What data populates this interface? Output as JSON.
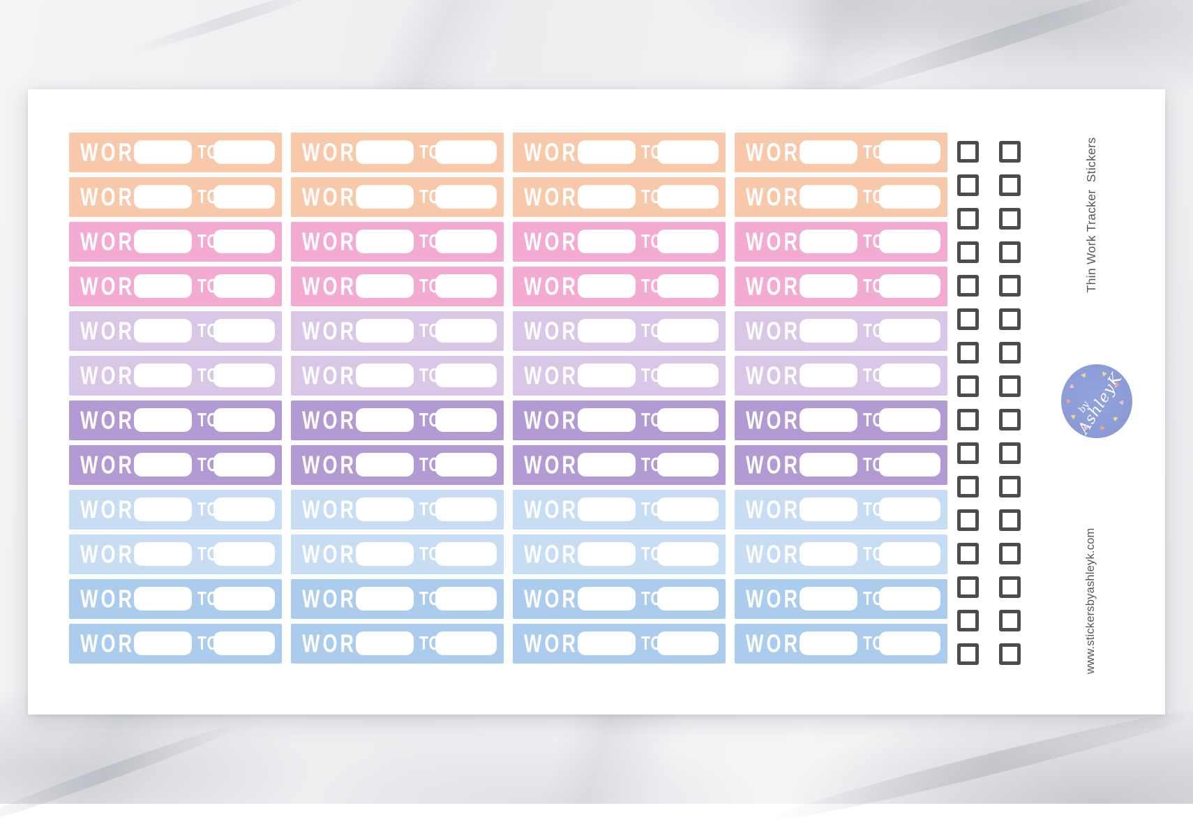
{
  "sheet": {
    "title_vertical": "Thin Work Tracker  Stickers",
    "website_vertical": "www.stickersbyashleyk.com",
    "grid": {
      "columns": 4,
      "rows": 12,
      "row_colors": [
        "#f8c8aa",
        "#f8c8aa",
        "#f3abd1",
        "#f3abd1",
        "#d8c7e7",
        "#d8c7e7",
        "#b29bd3",
        "#b29bd3",
        "#c7ddf3",
        "#c7ddf3",
        "#accced",
        "#accced"
      ],
      "sticker": {
        "label": "WORK",
        "connector": "TO"
      }
    },
    "checkboxes": {
      "rows": 16,
      "columns": 2,
      "border_color": "#4c4c4e"
    },
    "background_color": "#ffffff"
  },
  "logo": {
    "prefix": "by",
    "name": "AshleyK",
    "bg_color": "#8c9cd6",
    "text_color": "#ffffff",
    "heart_colors": [
      "#f2d98c",
      "#f0a490",
      "#f6bfc7"
    ]
  },
  "colors": {
    "marble_base": "#f1f1f3",
    "side_text": "#58585b"
  }
}
